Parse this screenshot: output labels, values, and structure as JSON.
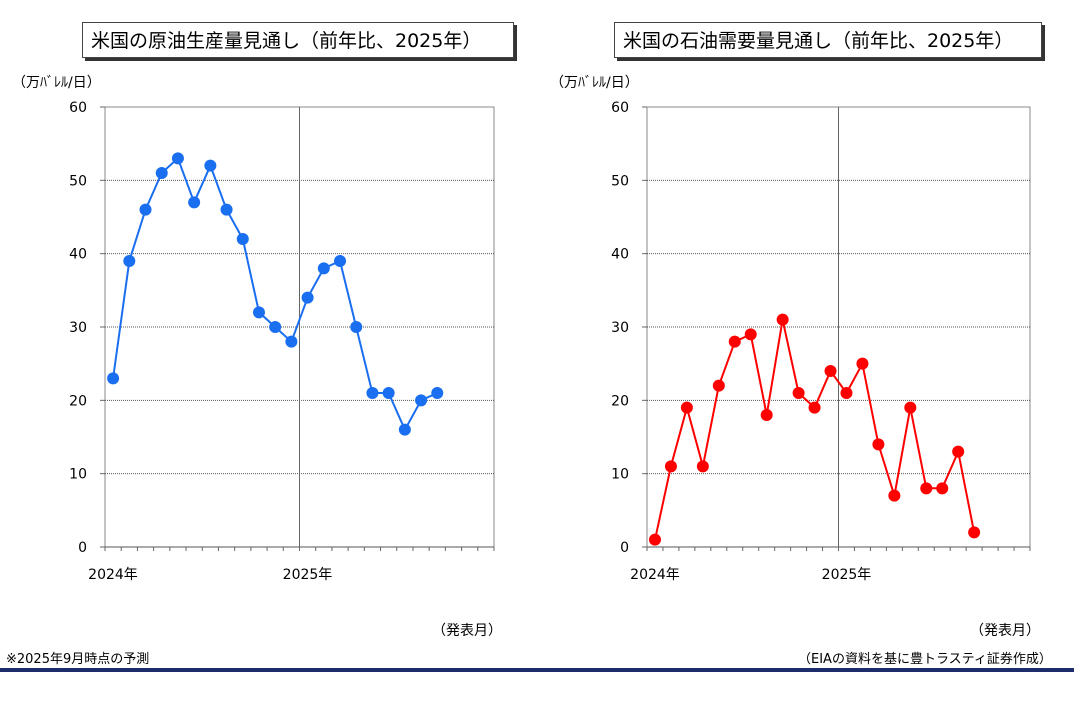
{
  "chart_data": [
    {
      "type": "line",
      "title": "米国の原油生産量見通し（前年比、2025年）",
      "ylabel": "（万バレル/日）",
      "xlabel": "（発表月）",
      "ylim": [
        0,
        60
      ],
      "yticks": [
        0,
        10,
        20,
        30,
        40,
        50,
        60
      ],
      "x_tick_labels": [
        {
          "label": "2024年",
          "index": 0
        },
        {
          "label": "2025年",
          "index": 12
        }
      ],
      "months": 24,
      "grid": true,
      "color": "#1a6ef0",
      "series": [
        {
          "values": [
            23,
            39,
            46,
            51,
            53,
            47,
            52,
            46,
            42,
            32,
            30,
            28,
            34,
            38,
            39,
            30,
            21,
            21,
            16,
            20,
            21
          ]
        }
      ]
    },
    {
      "type": "line",
      "title": "米国の石油需要量見通し（前年比、2025年）",
      "ylabel": "（万バレル/日）",
      "xlabel": "（発表月）",
      "ylim": [
        0,
        60
      ],
      "yticks": [
        0,
        10,
        20,
        30,
        40,
        50,
        60
      ],
      "x_tick_labels": [
        {
          "label": "2024年",
          "index": 0
        },
        {
          "label": "2025年",
          "index": 12
        }
      ],
      "months": 24,
      "grid": true,
      "color": "#ff0000",
      "series": [
        {
          "values": [
            1,
            11,
            19,
            11,
            22,
            28,
            29,
            18,
            31,
            21,
            19,
            24,
            21,
            25,
            14,
            7,
            19,
            8,
            8,
            13,
            2
          ]
        }
      ]
    }
  ],
  "footnote_left": "※2025年9月時点の予測",
  "footnote_right": "（EIAの資料を基に豊トラスティ証券作成）",
  "unit_label": "（万ﾊﾞﾚﾙ/日）",
  "xaxis_note": "（発表月）"
}
